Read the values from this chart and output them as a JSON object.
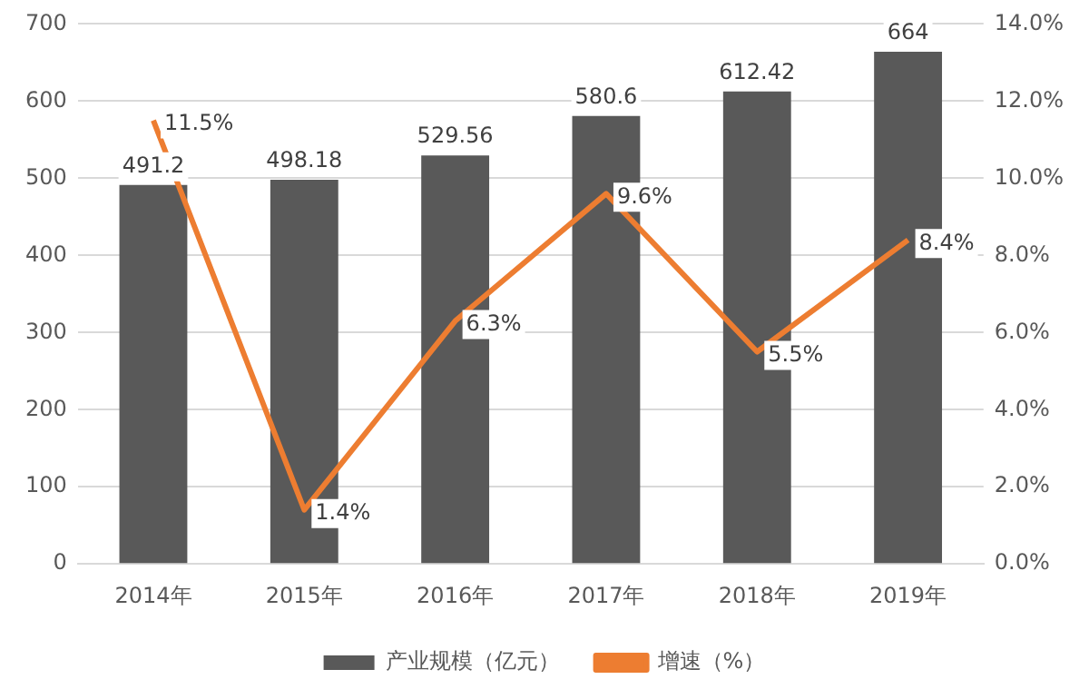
{
  "chart_data": {
    "type": "bar",
    "categories": [
      "2014年",
      "2015年",
      "2016年",
      "2017年",
      "2018年",
      "2019年"
    ],
    "series": [
      {
        "name": "产业规模（亿元）",
        "color": "#595959",
        "values": [
          491.2,
          498.18,
          529.56,
          580.6,
          612.42,
          664
        ],
        "value_labels": [
          "491.2",
          "498.18",
          "529.56",
          "580.6",
          "612.42",
          "664"
        ]
      },
      {
        "name": "增速（%）",
        "type": "line",
        "axis": "y2",
        "color": "#ed7d31",
        "values": [
          11.5,
          1.4,
          6.3,
          9.6,
          5.5,
          8.4
        ],
        "value_labels": [
          "11.5%",
          "1.4%",
          "6.3%",
          "9.6%",
          "5.5%",
          "8.4%"
        ]
      }
    ],
    "ylim": [
      0,
      700
    ],
    "yticks": [
      0,
      100,
      200,
      300,
      400,
      500,
      600,
      700
    ],
    "y2lim": [
      0,
      14
    ],
    "y2ticks": [
      {
        "value": 0,
        "label": "0.0%"
      },
      {
        "value": 2,
        "label": "2.0%"
      },
      {
        "value": 4,
        "label": "4.0%"
      },
      {
        "value": 6,
        "label": "6.0%"
      },
      {
        "value": 8,
        "label": "8.0%"
      },
      {
        "value": 10,
        "label": "10.0%"
      },
      {
        "value": 12,
        "label": "12.0%"
      },
      {
        "value": 14,
        "label": "14.0%"
      }
    ],
    "grid": "y",
    "legend": "bottom",
    "marker": "none",
    "line_style": "solid"
  }
}
